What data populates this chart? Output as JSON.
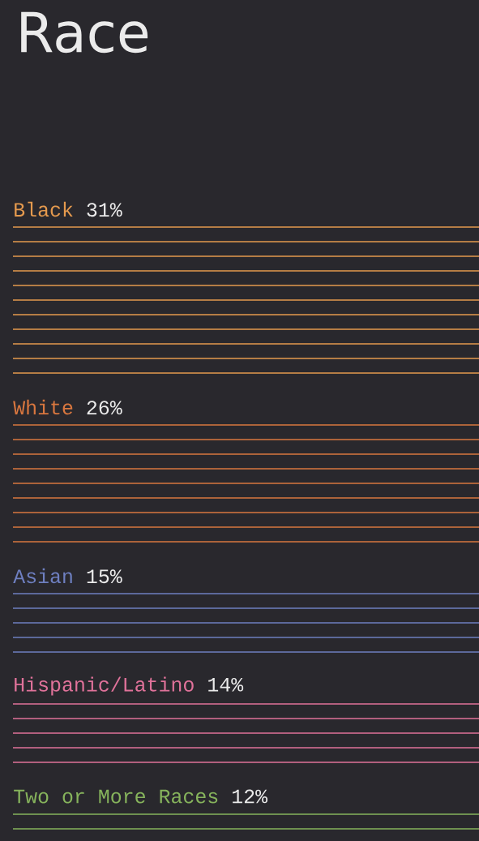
{
  "chart_data": {
    "type": "other",
    "title": "Race",
    "categories": [
      "Black",
      "White",
      "Asian",
      "Hispanic/Latino",
      "Two or More Races"
    ],
    "values": [
      31,
      26,
      15,
      14,
      12
    ],
    "value_labels": [
      "31%",
      "26%",
      "15%",
      "14%",
      "12%"
    ],
    "colors": [
      "#e59a4e",
      "#d9773f",
      "#6e7fc0",
      "#e0729a",
      "#86b35c"
    ]
  }
}
